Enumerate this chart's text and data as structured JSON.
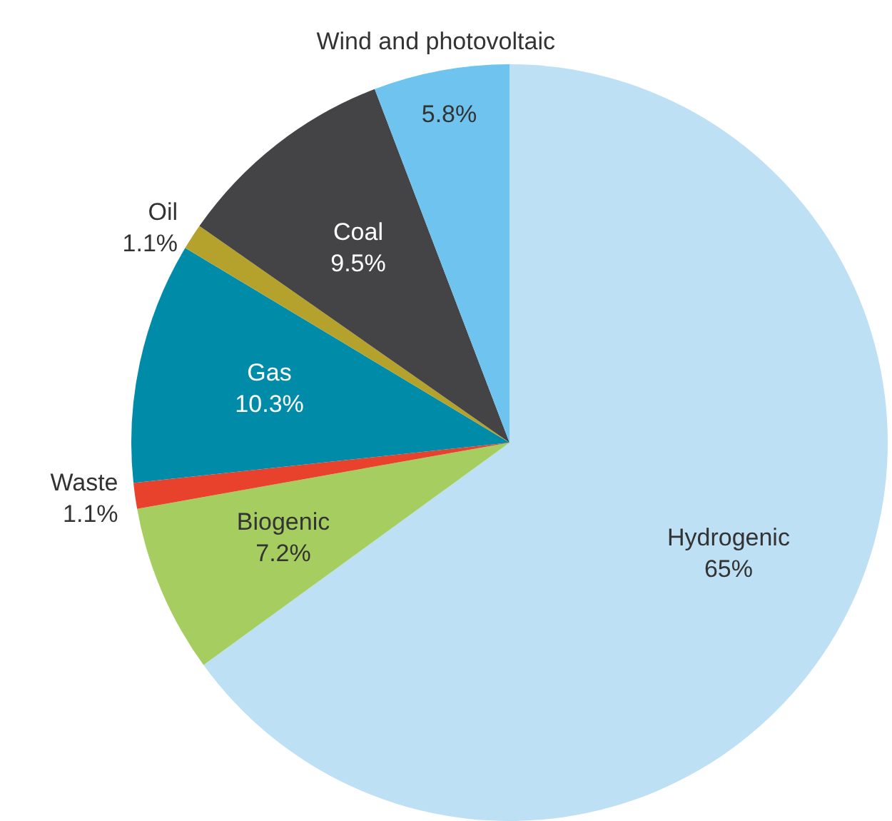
{
  "chart_data": {
    "type": "pie",
    "categories": [
      "Hydrogenic",
      "Biogenic",
      "Waste",
      "Gas",
      "Oil",
      "Coal",
      "Wind and photovoltaic"
    ],
    "values": [
      65,
      7.2,
      1.1,
      10.3,
      1.1,
      9.5,
      5.8
    ],
    "value_labels": [
      "65%",
      "7.2%",
      "1.1%",
      "10.3%",
      "1.1%",
      "9.5%",
      "5.8%"
    ],
    "colors": [
      "#bde0f5",
      "#a5cd5f",
      "#e8412c",
      "#008ba9",
      "#b5a22c",
      "#444446",
      "#6ec4ee"
    ],
    "legend": false
  }
}
